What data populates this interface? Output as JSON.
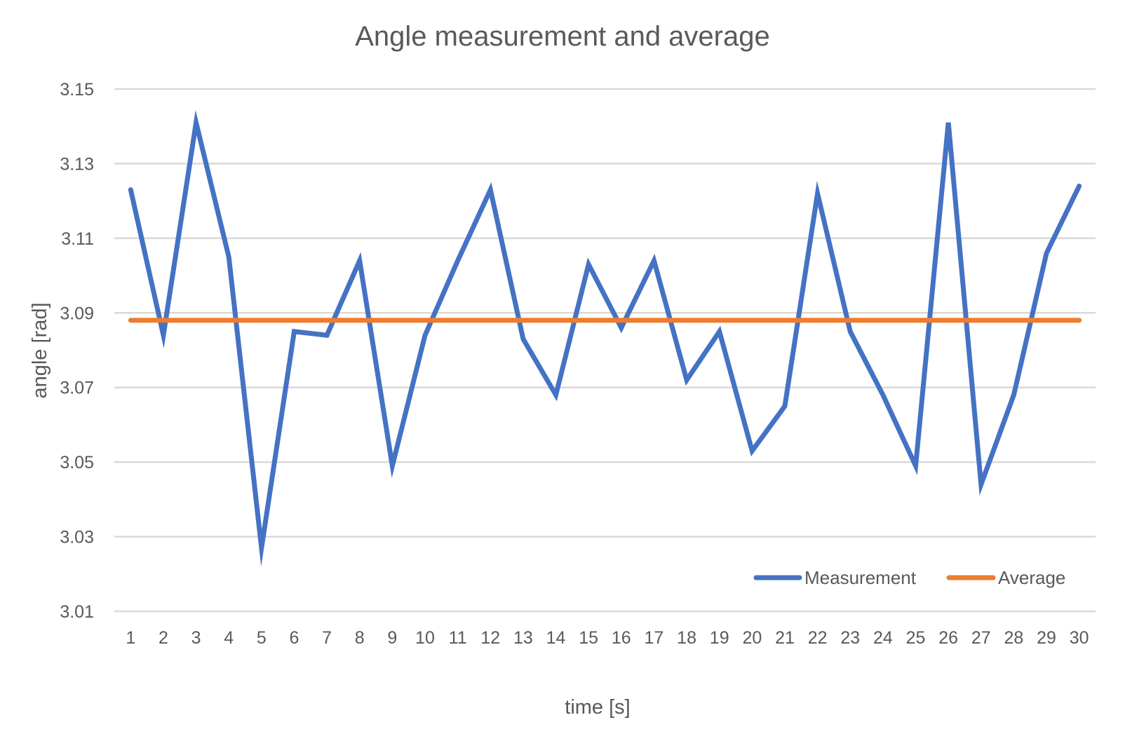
{
  "chart_data": {
    "type": "line",
    "title": "Angle measurement and average",
    "xlabel": "time [s]",
    "ylabel": "angle [rad]",
    "categories": [
      "1",
      "2",
      "3",
      "4",
      "5",
      "6",
      "7",
      "8",
      "9",
      "10",
      "11",
      "12",
      "13",
      "14",
      "15",
      "16",
      "17",
      "18",
      "19",
      "20",
      "21",
      "22",
      "23",
      "24",
      "25",
      "26",
      "27",
      "28",
      "29",
      "30"
    ],
    "ylim": [
      3.01,
      3.15
    ],
    "yticks": [
      "3.01",
      "3.03",
      "3.05",
      "3.07",
      "3.09",
      "3.11",
      "3.13",
      "3.15"
    ],
    "grid": true,
    "legend_position": "bottom-right",
    "series": [
      {
        "name": "Measurement",
        "color": "#4472C4",
        "values": [
          3.123,
          3.084,
          3.141,
          3.105,
          3.027,
          3.085,
          3.084,
          3.104,
          3.049,
          3.084,
          3.104,
          3.123,
          3.083,
          3.068,
          3.103,
          3.086,
          3.104,
          3.072,
          3.085,
          3.053,
          3.065,
          3.122,
          3.085,
          3.068,
          3.049,
          3.141,
          3.044,
          3.068,
          3.106,
          3.124
        ]
      },
      {
        "name": "Average",
        "color": "#ED7D31",
        "values": [
          3.088,
          3.088,
          3.088,
          3.088,
          3.088,
          3.088,
          3.088,
          3.088,
          3.088,
          3.088,
          3.088,
          3.088,
          3.088,
          3.088,
          3.088,
          3.088,
          3.088,
          3.088,
          3.088,
          3.088,
          3.088,
          3.088,
          3.088,
          3.088,
          3.088,
          3.088,
          3.088,
          3.088,
          3.088,
          3.088
        ]
      }
    ]
  }
}
